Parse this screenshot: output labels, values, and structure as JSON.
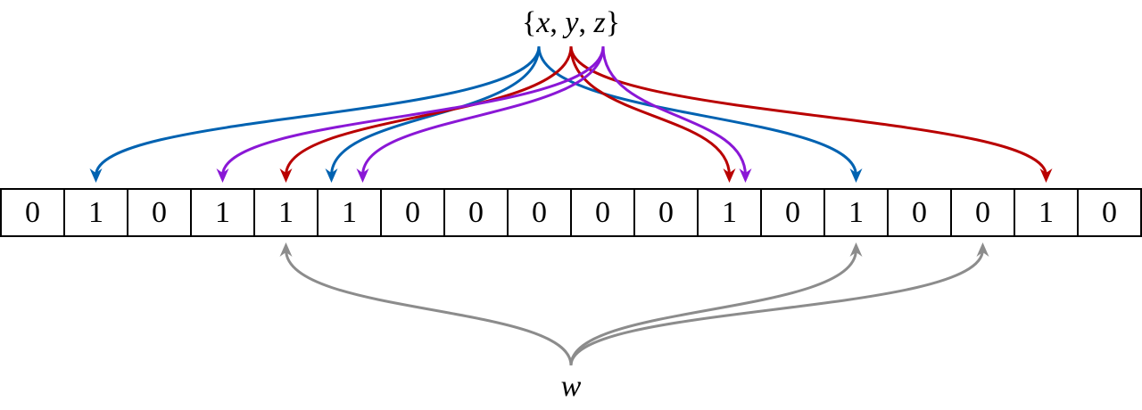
{
  "set_label": {
    "open": "{",
    "x": "x",
    "comma1": ", ",
    "y": "y",
    "comma2": ", ",
    "z": "z",
    "close": "}"
  },
  "query_label": "w",
  "bits": [
    "0",
    "1",
    "0",
    "1",
    "1",
    "1",
    "0",
    "0",
    "0",
    "0",
    "0",
    "1",
    "0",
    "1",
    "0",
    "0",
    "1",
    "0"
  ],
  "mappings": {
    "x": {
      "color": "#0062b1",
      "targets": [
        1,
        5,
        13
      ]
    },
    "y": {
      "color": "#b90000",
      "targets": [
        4,
        11,
        16
      ]
    },
    "z": {
      "color": "#8a17d6",
      "targets": [
        3,
        5,
        11
      ]
    },
    "w": {
      "color": "#8c8c8c",
      "targets": [
        4,
        13,
        15
      ]
    }
  }
}
